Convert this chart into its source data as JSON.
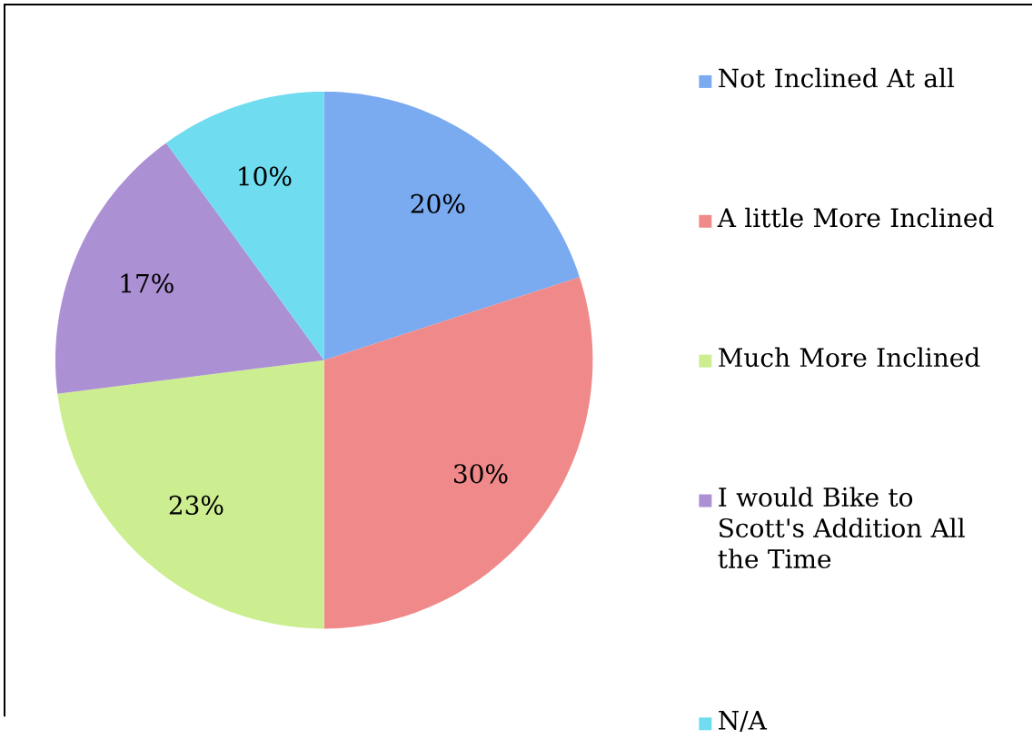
{
  "chart_data": {
    "type": "pie",
    "categories": [
      "Not Inclined At all",
      "A little More Inclined",
      "Much More Inclined",
      "I would Bike to Scott's Addition All the Time",
      "N/A"
    ],
    "values": [
      20,
      30,
      23,
      17,
      10
    ],
    "value_labels": [
      "20%",
      "30%",
      "23%",
      "17%",
      "10%"
    ],
    "colors": [
      "#7aaaf0",
      "#f08a8a",
      "#cdee90",
      "#ac90d4",
      "#6fdcf0"
    ],
    "legend": "right"
  }
}
